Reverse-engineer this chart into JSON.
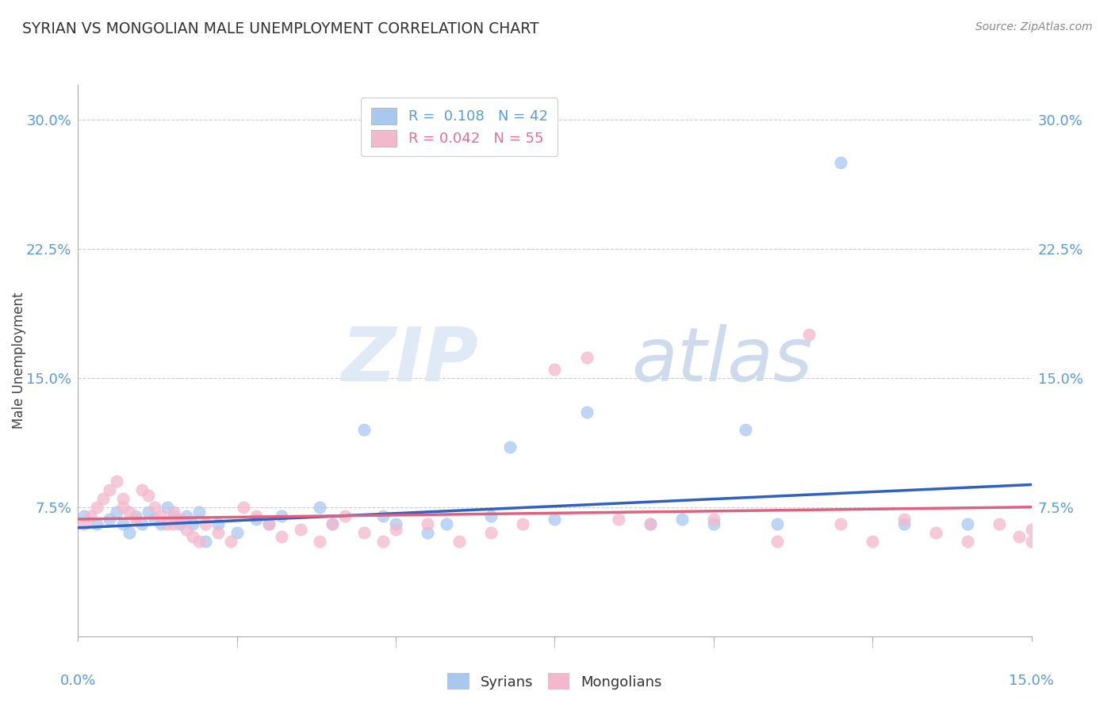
{
  "title": "SYRIAN VS MONGOLIAN MALE UNEMPLOYMENT CORRELATION CHART",
  "source": "Source: ZipAtlas.com",
  "ylabel": "Male Unemployment",
  "ytick_labels": [
    "7.5%",
    "15.0%",
    "22.5%",
    "30.0%"
  ],
  "ytick_values": [
    0.075,
    0.15,
    0.225,
    0.3
  ],
  "xlim": [
    0.0,
    0.15
  ],
  "ylim": [
    0.0,
    0.32
  ],
  "blue_color": "#a8c8f0",
  "pink_color": "#f4b8cc",
  "blue_line_color": "#3060c0",
  "pink_line_color": "#e06080",
  "syrians_x": [
    0.001,
    0.003,
    0.005,
    0.006,
    0.007,
    0.008,
    0.009,
    0.01,
    0.011,
    0.012,
    0.013,
    0.014,
    0.015,
    0.016,
    0.017,
    0.018,
    0.019,
    0.02,
    0.022,
    0.025,
    0.028,
    0.03,
    0.032,
    0.038,
    0.04,
    0.045,
    0.048,
    0.05,
    0.055,
    0.058,
    0.065,
    0.068,
    0.075,
    0.08,
    0.09,
    0.095,
    0.1,
    0.105,
    0.11,
    0.12,
    0.13,
    0.14
  ],
  "syrians_y": [
    0.07,
    0.065,
    0.068,
    0.072,
    0.065,
    0.06,
    0.07,
    0.065,
    0.072,
    0.068,
    0.065,
    0.075,
    0.07,
    0.065,
    0.07,
    0.065,
    0.072,
    0.055,
    0.065,
    0.06,
    0.068,
    0.065,
    0.07,
    0.075,
    0.065,
    0.12,
    0.07,
    0.065,
    0.06,
    0.065,
    0.07,
    0.11,
    0.068,
    0.13,
    0.065,
    0.068,
    0.065,
    0.12,
    0.065,
    0.275,
    0.065,
    0.065
  ],
  "mongolians_x": [
    0.001,
    0.002,
    0.003,
    0.004,
    0.005,
    0.006,
    0.007,
    0.007,
    0.008,
    0.009,
    0.01,
    0.011,
    0.012,
    0.013,
    0.014,
    0.015,
    0.015,
    0.016,
    0.017,
    0.018,
    0.019,
    0.02,
    0.022,
    0.024,
    0.026,
    0.028,
    0.03,
    0.032,
    0.035,
    0.038,
    0.04,
    0.042,
    0.045,
    0.048,
    0.05,
    0.055,
    0.06,
    0.065,
    0.07,
    0.075,
    0.08,
    0.085,
    0.09,
    0.1,
    0.11,
    0.115,
    0.12,
    0.125,
    0.13,
    0.135,
    0.14,
    0.145,
    0.148,
    0.15,
    0.15
  ],
  "mongolians_y": [
    0.065,
    0.07,
    0.075,
    0.08,
    0.085,
    0.09,
    0.08,
    0.075,
    0.072,
    0.068,
    0.085,
    0.082,
    0.075,
    0.07,
    0.065,
    0.072,
    0.065,
    0.068,
    0.062,
    0.058,
    0.055,
    0.065,
    0.06,
    0.055,
    0.075,
    0.07,
    0.065,
    0.058,
    0.062,
    0.055,
    0.065,
    0.07,
    0.06,
    0.055,
    0.062,
    0.065,
    0.055,
    0.06,
    0.065,
    0.155,
    0.162,
    0.068,
    0.065,
    0.068,
    0.055,
    0.175,
    0.065,
    0.055,
    0.068,
    0.06,
    0.055,
    0.065,
    0.058,
    0.062,
    0.055
  ]
}
